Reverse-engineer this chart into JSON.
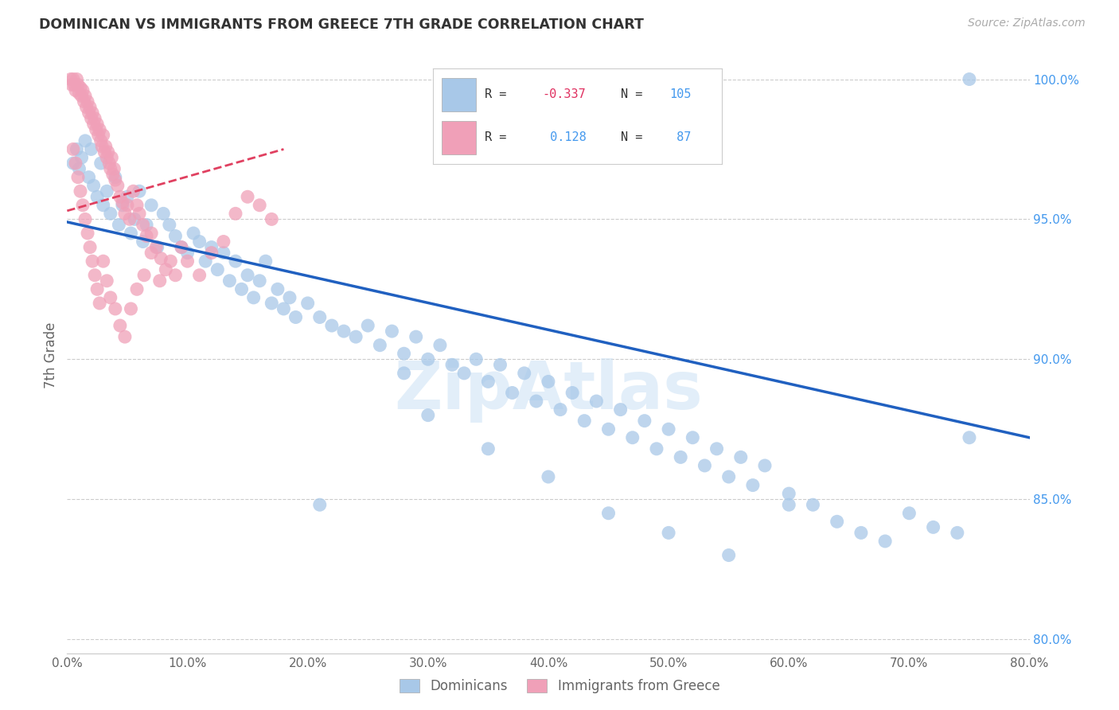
{
  "title": "DOMINICAN VS IMMIGRANTS FROM GREECE 7TH GRADE CORRELATION CHART",
  "source": "Source: ZipAtlas.com",
  "ylabel": "7th Grade",
  "xlim": [
    0.0,
    0.8
  ],
  "ylim": [
    0.795,
    1.008
  ],
  "xticks": [
    0.0,
    0.1,
    0.2,
    0.3,
    0.4,
    0.5,
    0.6,
    0.7,
    0.8
  ],
  "xticklabels": [
    "0.0%",
    "10.0%",
    "20.0%",
    "30.0%",
    "40.0%",
    "50.0%",
    "60.0%",
    "70.0%",
    "80.0%"
  ],
  "yticks_right": [
    0.8,
    0.85,
    0.9,
    0.95,
    1.0
  ],
  "yticklabels_right": [
    "80.0%",
    "85.0%",
    "90.0%",
    "95.0%",
    "100.0%"
  ],
  "grid_color": "#cccccc",
  "blue_color": "#a8c8e8",
  "pink_color": "#f0a0b8",
  "blue_line_color": "#2060c0",
  "pink_line_color": "#e04060",
  "blue_points_x": [
    0.005,
    0.008,
    0.01,
    0.012,
    0.015,
    0.018,
    0.02,
    0.022,
    0.025,
    0.028,
    0.03,
    0.033,
    0.036,
    0.04,
    0.043,
    0.046,
    0.05,
    0.053,
    0.056,
    0.06,
    0.063,
    0.066,
    0.07,
    0.075,
    0.08,
    0.085,
    0.09,
    0.095,
    0.1,
    0.105,
    0.11,
    0.115,
    0.12,
    0.125,
    0.13,
    0.135,
    0.14,
    0.145,
    0.15,
    0.155,
    0.16,
    0.165,
    0.17,
    0.175,
    0.18,
    0.185,
    0.19,
    0.2,
    0.21,
    0.22,
    0.23,
    0.24,
    0.25,
    0.26,
    0.27,
    0.28,
    0.29,
    0.3,
    0.31,
    0.32,
    0.33,
    0.34,
    0.35,
    0.36,
    0.37,
    0.38,
    0.39,
    0.4,
    0.41,
    0.42,
    0.43,
    0.44,
    0.45,
    0.46,
    0.47,
    0.48,
    0.49,
    0.5,
    0.51,
    0.52,
    0.53,
    0.54,
    0.55,
    0.56,
    0.57,
    0.58,
    0.6,
    0.62,
    0.64,
    0.66,
    0.68,
    0.7,
    0.72,
    0.74,
    0.75,
    0.21,
    0.28,
    0.3,
    0.35,
    0.4,
    0.45,
    0.5,
    0.55,
    0.6,
    0.75
  ],
  "blue_points_y": [
    0.97,
    0.975,
    0.968,
    0.972,
    0.978,
    0.965,
    0.975,
    0.962,
    0.958,
    0.97,
    0.955,
    0.96,
    0.952,
    0.965,
    0.948,
    0.955,
    0.958,
    0.945,
    0.95,
    0.96,
    0.942,
    0.948,
    0.955,
    0.94,
    0.952,
    0.948,
    0.944,
    0.94,
    0.938,
    0.945,
    0.942,
    0.935,
    0.94,
    0.932,
    0.938,
    0.928,
    0.935,
    0.925,
    0.93,
    0.922,
    0.928,
    0.935,
    0.92,
    0.925,
    0.918,
    0.922,
    0.915,
    0.92,
    0.915,
    0.912,
    0.91,
    0.908,
    0.912,
    0.905,
    0.91,
    0.902,
    0.908,
    0.9,
    0.905,
    0.898,
    0.895,
    0.9,
    0.892,
    0.898,
    0.888,
    0.895,
    0.885,
    0.892,
    0.882,
    0.888,
    0.878,
    0.885,
    0.875,
    0.882,
    0.872,
    0.878,
    0.868,
    0.875,
    0.865,
    0.872,
    0.862,
    0.868,
    0.858,
    0.865,
    0.855,
    0.862,
    0.852,
    0.848,
    0.842,
    0.838,
    0.835,
    0.845,
    0.84,
    0.838,
    0.872,
    0.848,
    0.895,
    0.88,
    0.868,
    0.858,
    0.845,
    0.838,
    0.83,
    0.848,
    1.0
  ],
  "pink_points_x": [
    0.003,
    0.004,
    0.005,
    0.006,
    0.007,
    0.008,
    0.009,
    0.01,
    0.011,
    0.012,
    0.013,
    0.014,
    0.015,
    0.016,
    0.017,
    0.018,
    0.019,
    0.02,
    0.021,
    0.022,
    0.023,
    0.024,
    0.025,
    0.026,
    0.027,
    0.028,
    0.029,
    0.03,
    0.031,
    0.032,
    0.033,
    0.034,
    0.035,
    0.036,
    0.037,
    0.038,
    0.039,
    0.04,
    0.042,
    0.044,
    0.046,
    0.048,
    0.05,
    0.052,
    0.055,
    0.058,
    0.06,
    0.063,
    0.066,
    0.07,
    0.074,
    0.078,
    0.082,
    0.086,
    0.09,
    0.095,
    0.1,
    0.11,
    0.12,
    0.13,
    0.14,
    0.15,
    0.16,
    0.17,
    0.005,
    0.007,
    0.009,
    0.011,
    0.013,
    0.015,
    0.017,
    0.019,
    0.021,
    0.023,
    0.025,
    0.027,
    0.03,
    0.033,
    0.036,
    0.04,
    0.044,
    0.048,
    0.053,
    0.058,
    0.064,
    0.07,
    0.077
  ],
  "pink_points_y": [
    1.0,
    0.998,
    1.0,
    0.998,
    0.996,
    1.0,
    0.998,
    0.995,
    0.997,
    0.994,
    0.996,
    0.992,
    0.994,
    0.99,
    0.992,
    0.988,
    0.99,
    0.986,
    0.988,
    0.984,
    0.986,
    0.982,
    0.984,
    0.98,
    0.982,
    0.978,
    0.976,
    0.98,
    0.974,
    0.976,
    0.972,
    0.974,
    0.97,
    0.968,
    0.972,
    0.966,
    0.968,
    0.964,
    0.962,
    0.958,
    0.956,
    0.952,
    0.955,
    0.95,
    0.96,
    0.955,
    0.952,
    0.948,
    0.944,
    0.945,
    0.94,
    0.936,
    0.932,
    0.935,
    0.93,
    0.94,
    0.935,
    0.93,
    0.938,
    0.942,
    0.952,
    0.958,
    0.955,
    0.95,
    0.975,
    0.97,
    0.965,
    0.96,
    0.955,
    0.95,
    0.945,
    0.94,
    0.935,
    0.93,
    0.925,
    0.92,
    0.935,
    0.928,
    0.922,
    0.918,
    0.912,
    0.908,
    0.918,
    0.925,
    0.93,
    0.938,
    0.928
  ]
}
